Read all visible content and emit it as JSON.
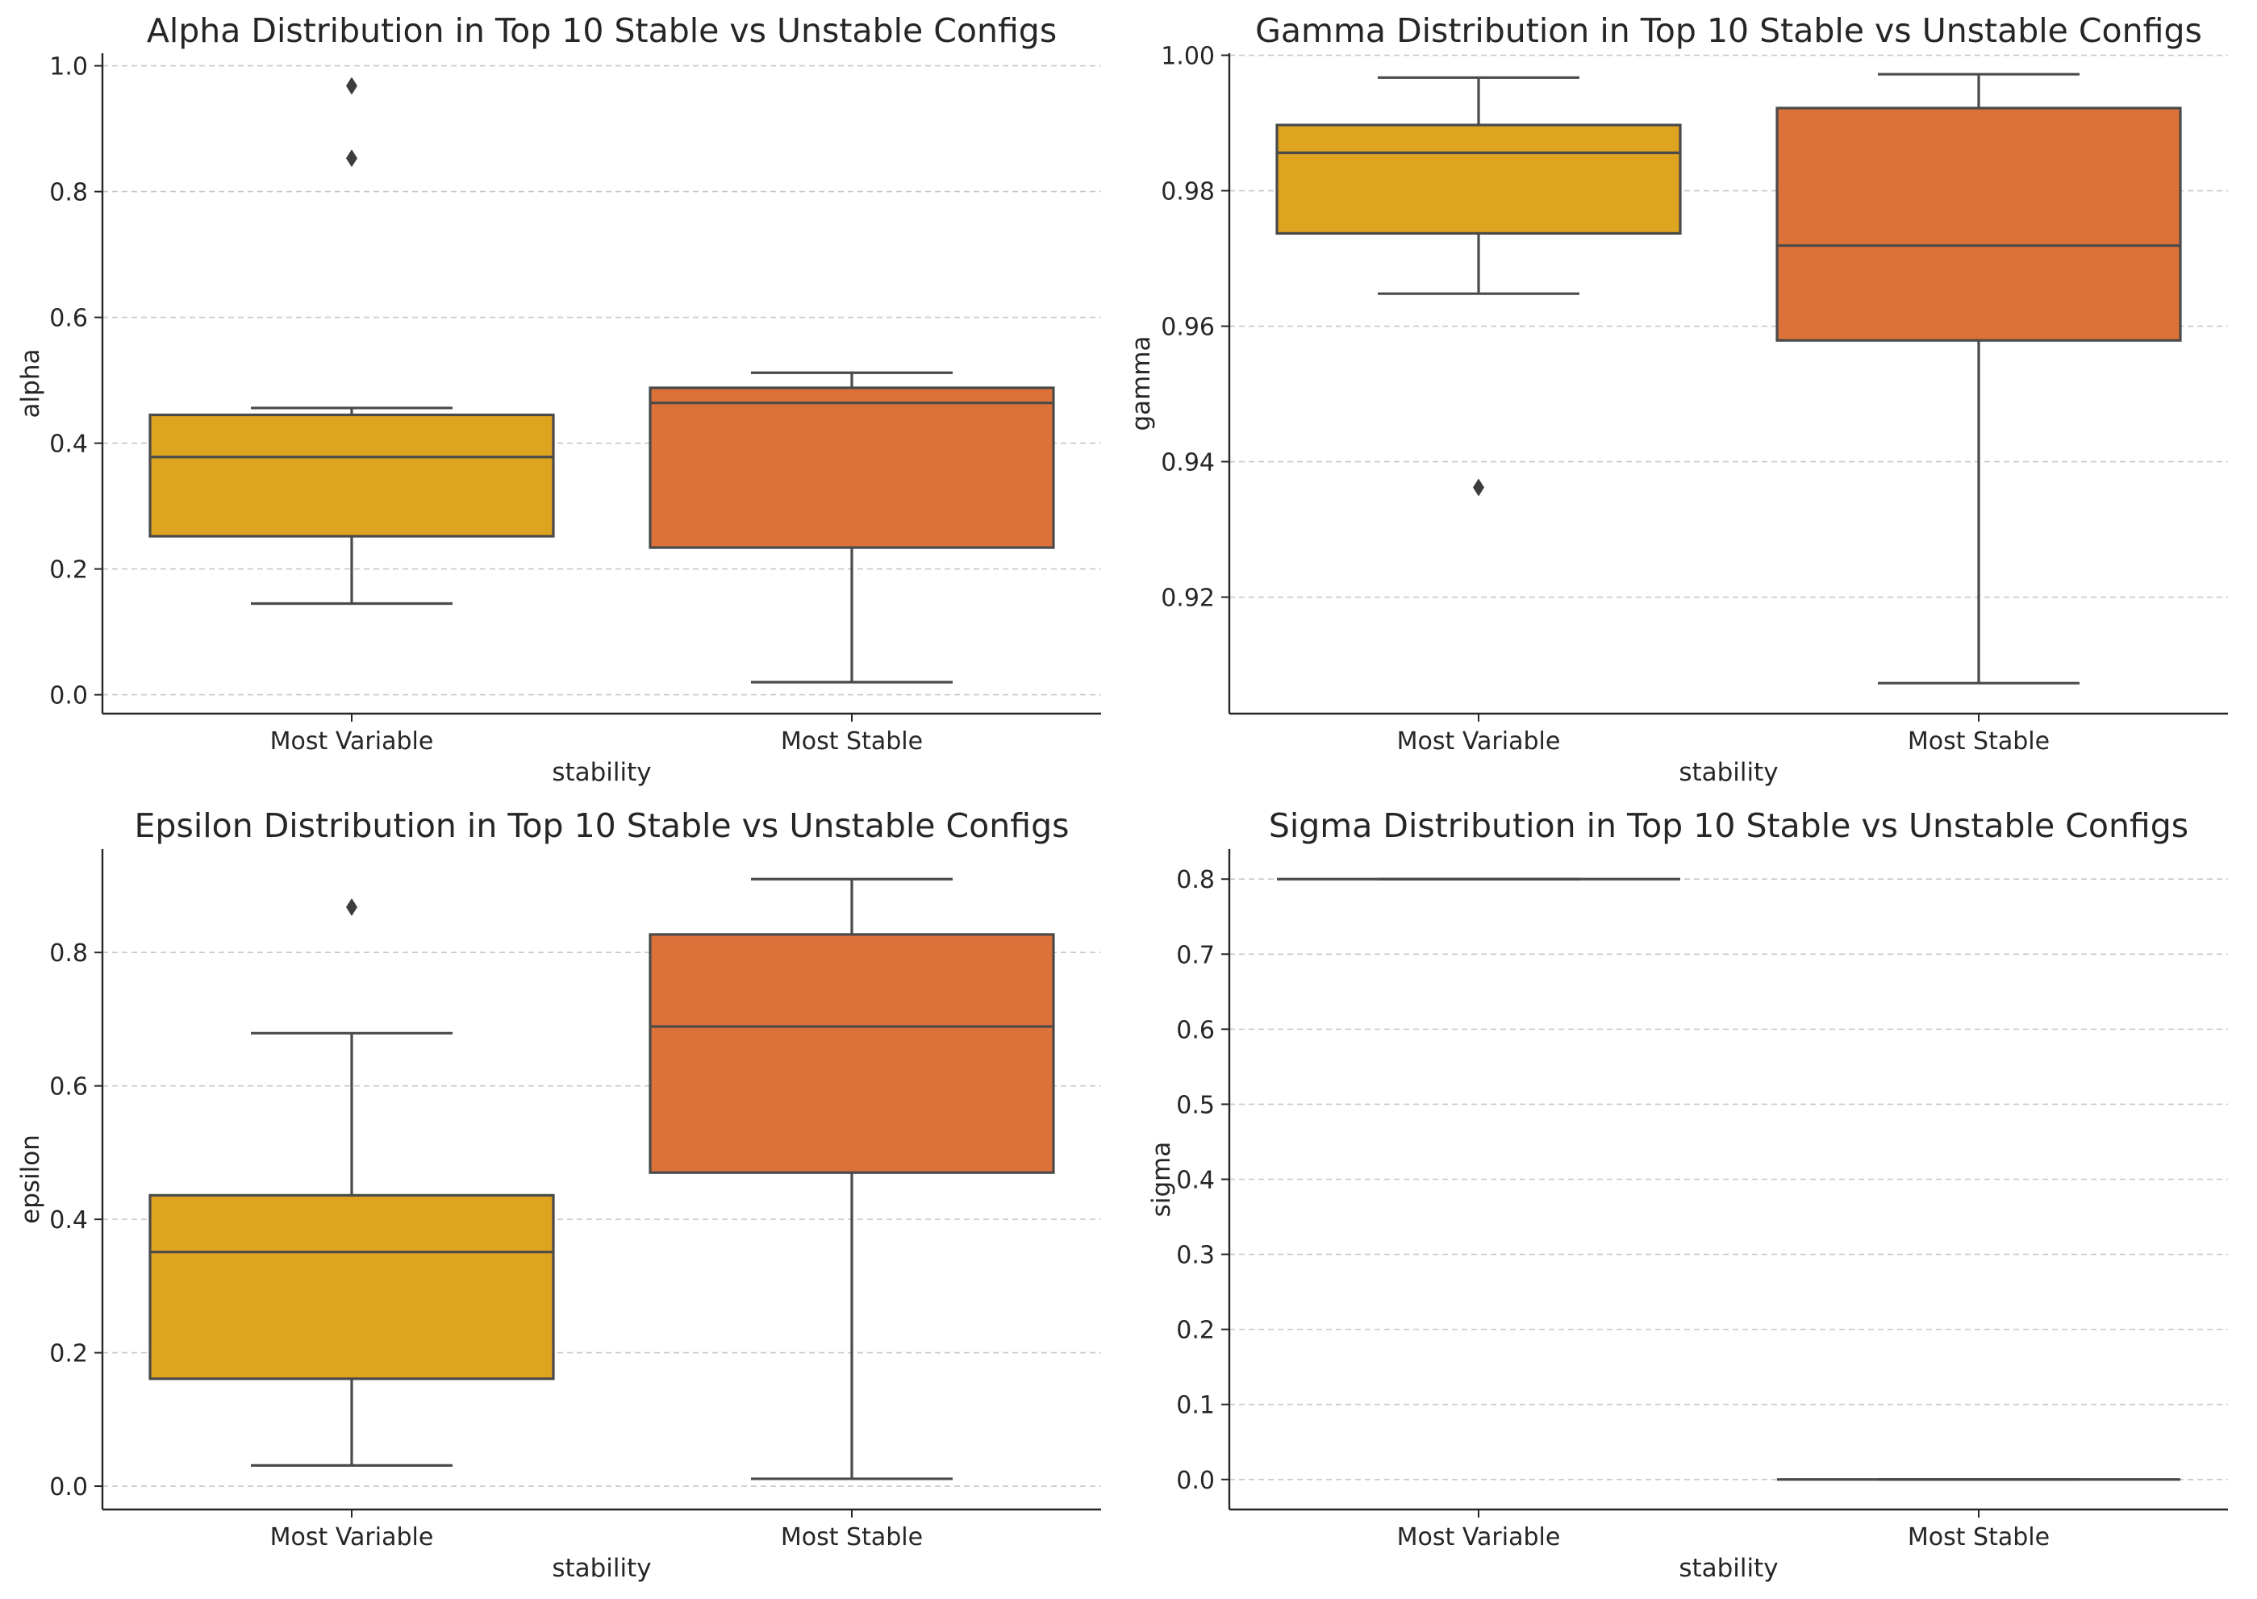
{
  "chart_data": [
    {
      "type": "box",
      "title": "Alpha Distribution in Top 10 Stable vs Unstable Configs",
      "xlabel": "stability",
      "ylabel": "alpha",
      "categories": [
        "Most Variable",
        "Most Stable"
      ],
      "ylim": [
        -0.03,
        1.02
      ],
      "yticks": [
        0.0,
        0.2,
        0.4,
        0.6,
        0.8,
        1.0
      ],
      "tick_format": "0.0",
      "grid": "y-dashed",
      "boxes": [
        {
          "category": "Most Variable",
          "color": "#DFA41F",
          "whisker_low": 0.145,
          "q1": 0.252,
          "median": 0.378,
          "q3": 0.445,
          "whisker_high": 0.456,
          "outliers": [
            0.968,
            0.853
          ]
        },
        {
          "category": "Most Stable",
          "color": "#DC723A",
          "whisker_low": 0.02,
          "q1": 0.234,
          "median": 0.464,
          "q3": 0.488,
          "whisker_high": 0.512,
          "outliers": []
        }
      ]
    },
    {
      "type": "box",
      "title": "Gamma Distribution in Top 10 Stable vs Unstable Configs",
      "xlabel": "stability",
      "ylabel": "gamma",
      "categories": [
        "Most Variable",
        "Most Stable"
      ],
      "ylim": [
        0.9028,
        1.0003
      ],
      "yticks": [
        0.92,
        0.94,
        0.96,
        0.98,
        1.0
      ],
      "tick_format": "0.00",
      "grid": "y-dashed",
      "boxes": [
        {
          "category": "Most Variable",
          "color": "#DFA41F",
          "whisker_low": 0.9648,
          "q1": 0.9737,
          "median": 0.9856,
          "q3": 0.9897,
          "whisker_high": 0.9967,
          "outliers": [
            0.9362
          ]
        },
        {
          "category": "Most Stable",
          "color": "#DC723A",
          "whisker_low": 0.9073,
          "q1": 0.9579,
          "median": 0.9719,
          "q3": 0.9922,
          "whisker_high": 0.9972,
          "outliers": []
        }
      ]
    },
    {
      "type": "box",
      "title": "Epsilon Distribution in Top 10 Stable vs Unstable Configs",
      "xlabel": "stability",
      "ylabel": "epsilon",
      "categories": [
        "Most Variable",
        "Most Stable"
      ],
      "ylim": [
        -0.035,
        0.955
      ],
      "yticks": [
        0.0,
        0.2,
        0.4,
        0.6,
        0.8
      ],
      "tick_format": "0.0",
      "grid": "y-dashed",
      "boxes": [
        {
          "category": "Most Variable",
          "color": "#DFA41F",
          "whisker_low": 0.031,
          "q1": 0.161,
          "median": 0.351,
          "q3": 0.436,
          "whisker_high": 0.679,
          "outliers": [
            0.868
          ]
        },
        {
          "category": "Most Stable",
          "color": "#DC723A",
          "whisker_low": 0.011,
          "q1": 0.47,
          "median": 0.689,
          "q3": 0.827,
          "whisker_high": 0.91,
          "outliers": []
        }
      ]
    },
    {
      "type": "box",
      "title": "Sigma Distribution in Top 10 Stable vs Unstable Configs",
      "xlabel": "stability",
      "ylabel": "sigma",
      "categories": [
        "Most Variable",
        "Most Stable"
      ],
      "ylim": [
        -0.04,
        0.84
      ],
      "yticks": [
        0.0,
        0.1,
        0.2,
        0.3,
        0.4,
        0.5,
        0.6,
        0.7,
        0.8
      ],
      "tick_format": "0.0",
      "grid": "y-dashed",
      "boxes": [
        {
          "category": "Most Variable",
          "color": "#DFA41F",
          "whisker_low": 0.8,
          "q1": 0.8,
          "median": 0.8,
          "q3": 0.8,
          "whisker_high": 0.8,
          "outliers": []
        },
        {
          "category": "Most Stable",
          "color": "#DC723A",
          "whisker_low": 0.0,
          "q1": 0.0,
          "median": 0.0,
          "q3": 0.0,
          "whisker_high": 0.0,
          "outliers": []
        }
      ]
    }
  ]
}
